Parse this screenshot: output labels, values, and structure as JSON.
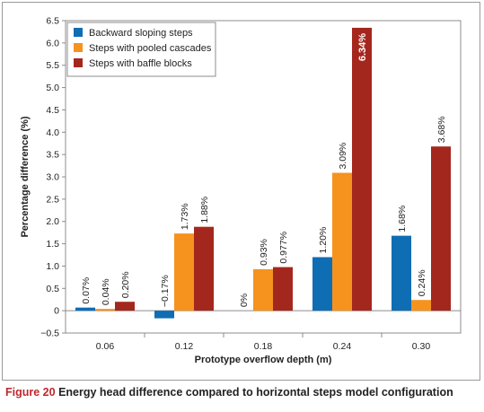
{
  "caption": {
    "label": "Figure 20",
    "text": "Energy head difference compared to horizontal steps model configuration"
  },
  "chart_data": {
    "type": "bar",
    "categories": [
      "0.06",
      "0.12",
      "0.18",
      "0.24",
      "0.30"
    ],
    "xlabel": "Prototype overflow depth (m)",
    "ylabel": "Percentage difference (%)",
    "ylim": [
      -0.5,
      6.5
    ],
    "yticks": [
      "−0.5",
      "0",
      "0.5",
      "1.0",
      "1.5",
      "2.0",
      "2.5",
      "3.0",
      "3.5",
      "4.0",
      "4.5",
      "5.0",
      "5.5",
      "6.0",
      "6.5"
    ],
    "grid": false,
    "legend_position": "top-left",
    "series": [
      {
        "name": "Backward sloping steps",
        "color": "#0f6db4",
        "values": [
          0.07,
          -0.17,
          0,
          1.2,
          1.68
        ],
        "labels": [
          "0.07%",
          "−0.17%",
          "0%",
          "1.20%",
          "1.68%"
        ]
      },
      {
        "name": "Steps with pooled cascades",
        "color": "#f6921e",
        "values": [
          0.04,
          1.73,
          0.93,
          3.09,
          0.24
        ],
        "labels": [
          "0.04%",
          "1.73%",
          "0.93%",
          "3.09%",
          "0.24%"
        ]
      },
      {
        "name": "Steps with baffle blocks",
        "color": "#a4271e",
        "values": [
          0.2,
          1.88,
          0.977,
          6.34,
          3.68
        ],
        "labels": [
          "0.20%",
          "1.88%",
          "0.977%",
          "6.34%",
          "3.68%"
        ]
      }
    ]
  }
}
